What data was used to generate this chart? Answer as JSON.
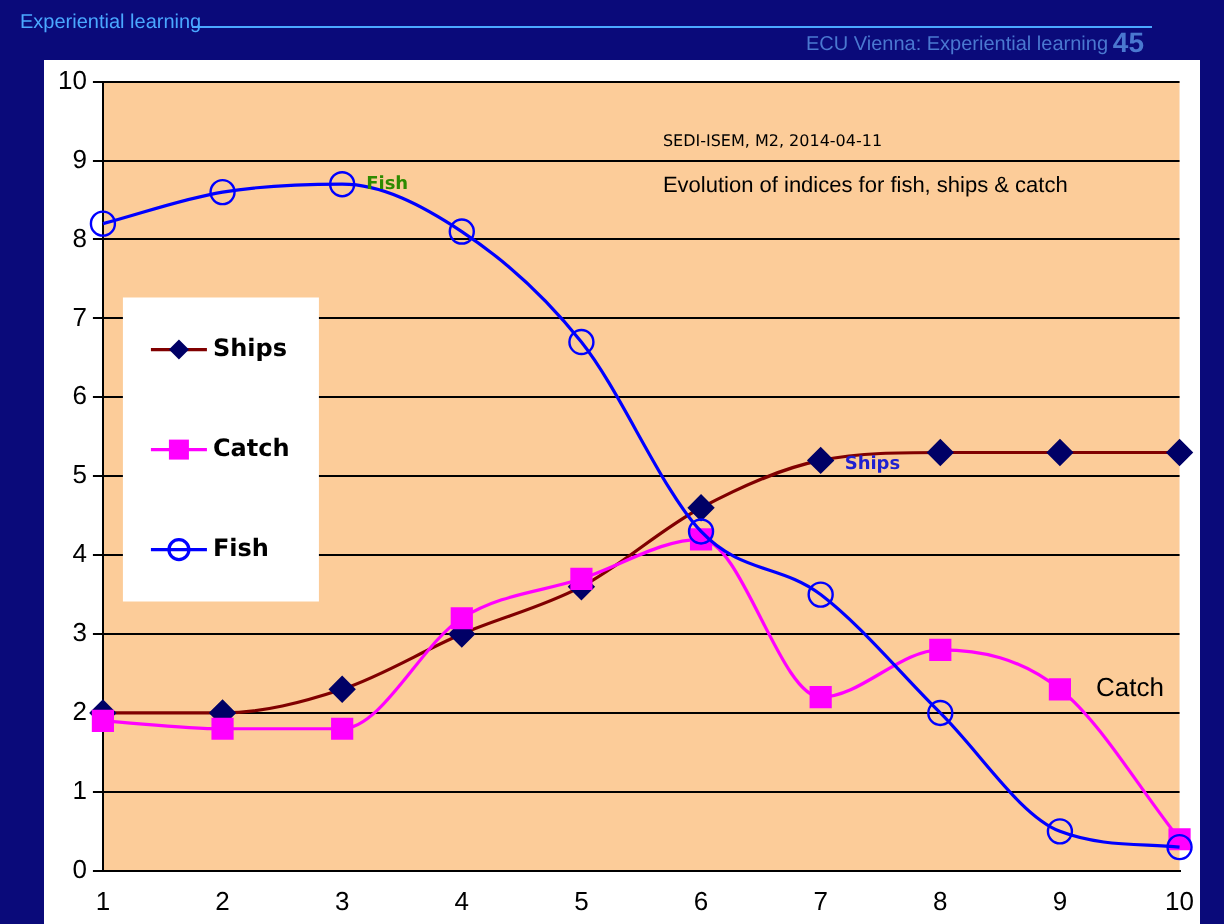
{
  "chart_data": {
    "type": "line",
    "title": "Evolution of indices for fish, ships & catch",
    "categories": [
      "1",
      "2",
      "3",
      "4",
      "5",
      "6",
      "7",
      "8",
      "9",
      "10"
    ],
    "series": [
      {
        "name": "Ships",
        "color": "#800000",
        "marker": "diamond",
        "values": [
          2,
          2,
          2.3,
          3,
          3.6,
          4.6,
          5.2,
          5.3,
          5.3,
          5.3
        ]
      },
      {
        "name": "Catch",
        "color": "#ff00ff",
        "marker": "square",
        "values": [
          1.9,
          1.8,
          1.8,
          3.2,
          3.7,
          4.2,
          2.2,
          2.8,
          2.3,
          0.4
        ]
      },
      {
        "name": "Fish",
        "color": "#0000ff",
        "marker": "circle",
        "values": [
          8.2,
          8.6,
          8.7,
          8.1,
          6.7,
          4.3,
          3.5,
          2.0,
          0.5,
          0.3
        ]
      }
    ],
    "ylim": [
      0,
      10
    ],
    "yticks": [
      0,
      1,
      2,
      3,
      4,
      5,
      6,
      7,
      8,
      9,
      10
    ],
    "grid": "y",
    "legend": "left",
    "annotations": [
      "Experiential learning",
      "ECU Vienna: Experiential learning",
      "45",
      "SEDI-ISEM, M2, 2014-04-11",
      {
        "text": "Fish",
        "x": "3",
        "y": 8.7
      },
      {
        "text": "Ships",
        "x": "7",
        "y": 5.2
      },
      {
        "text": "Catch",
        "x": "9",
        "y": 2.3
      }
    ]
  }
}
